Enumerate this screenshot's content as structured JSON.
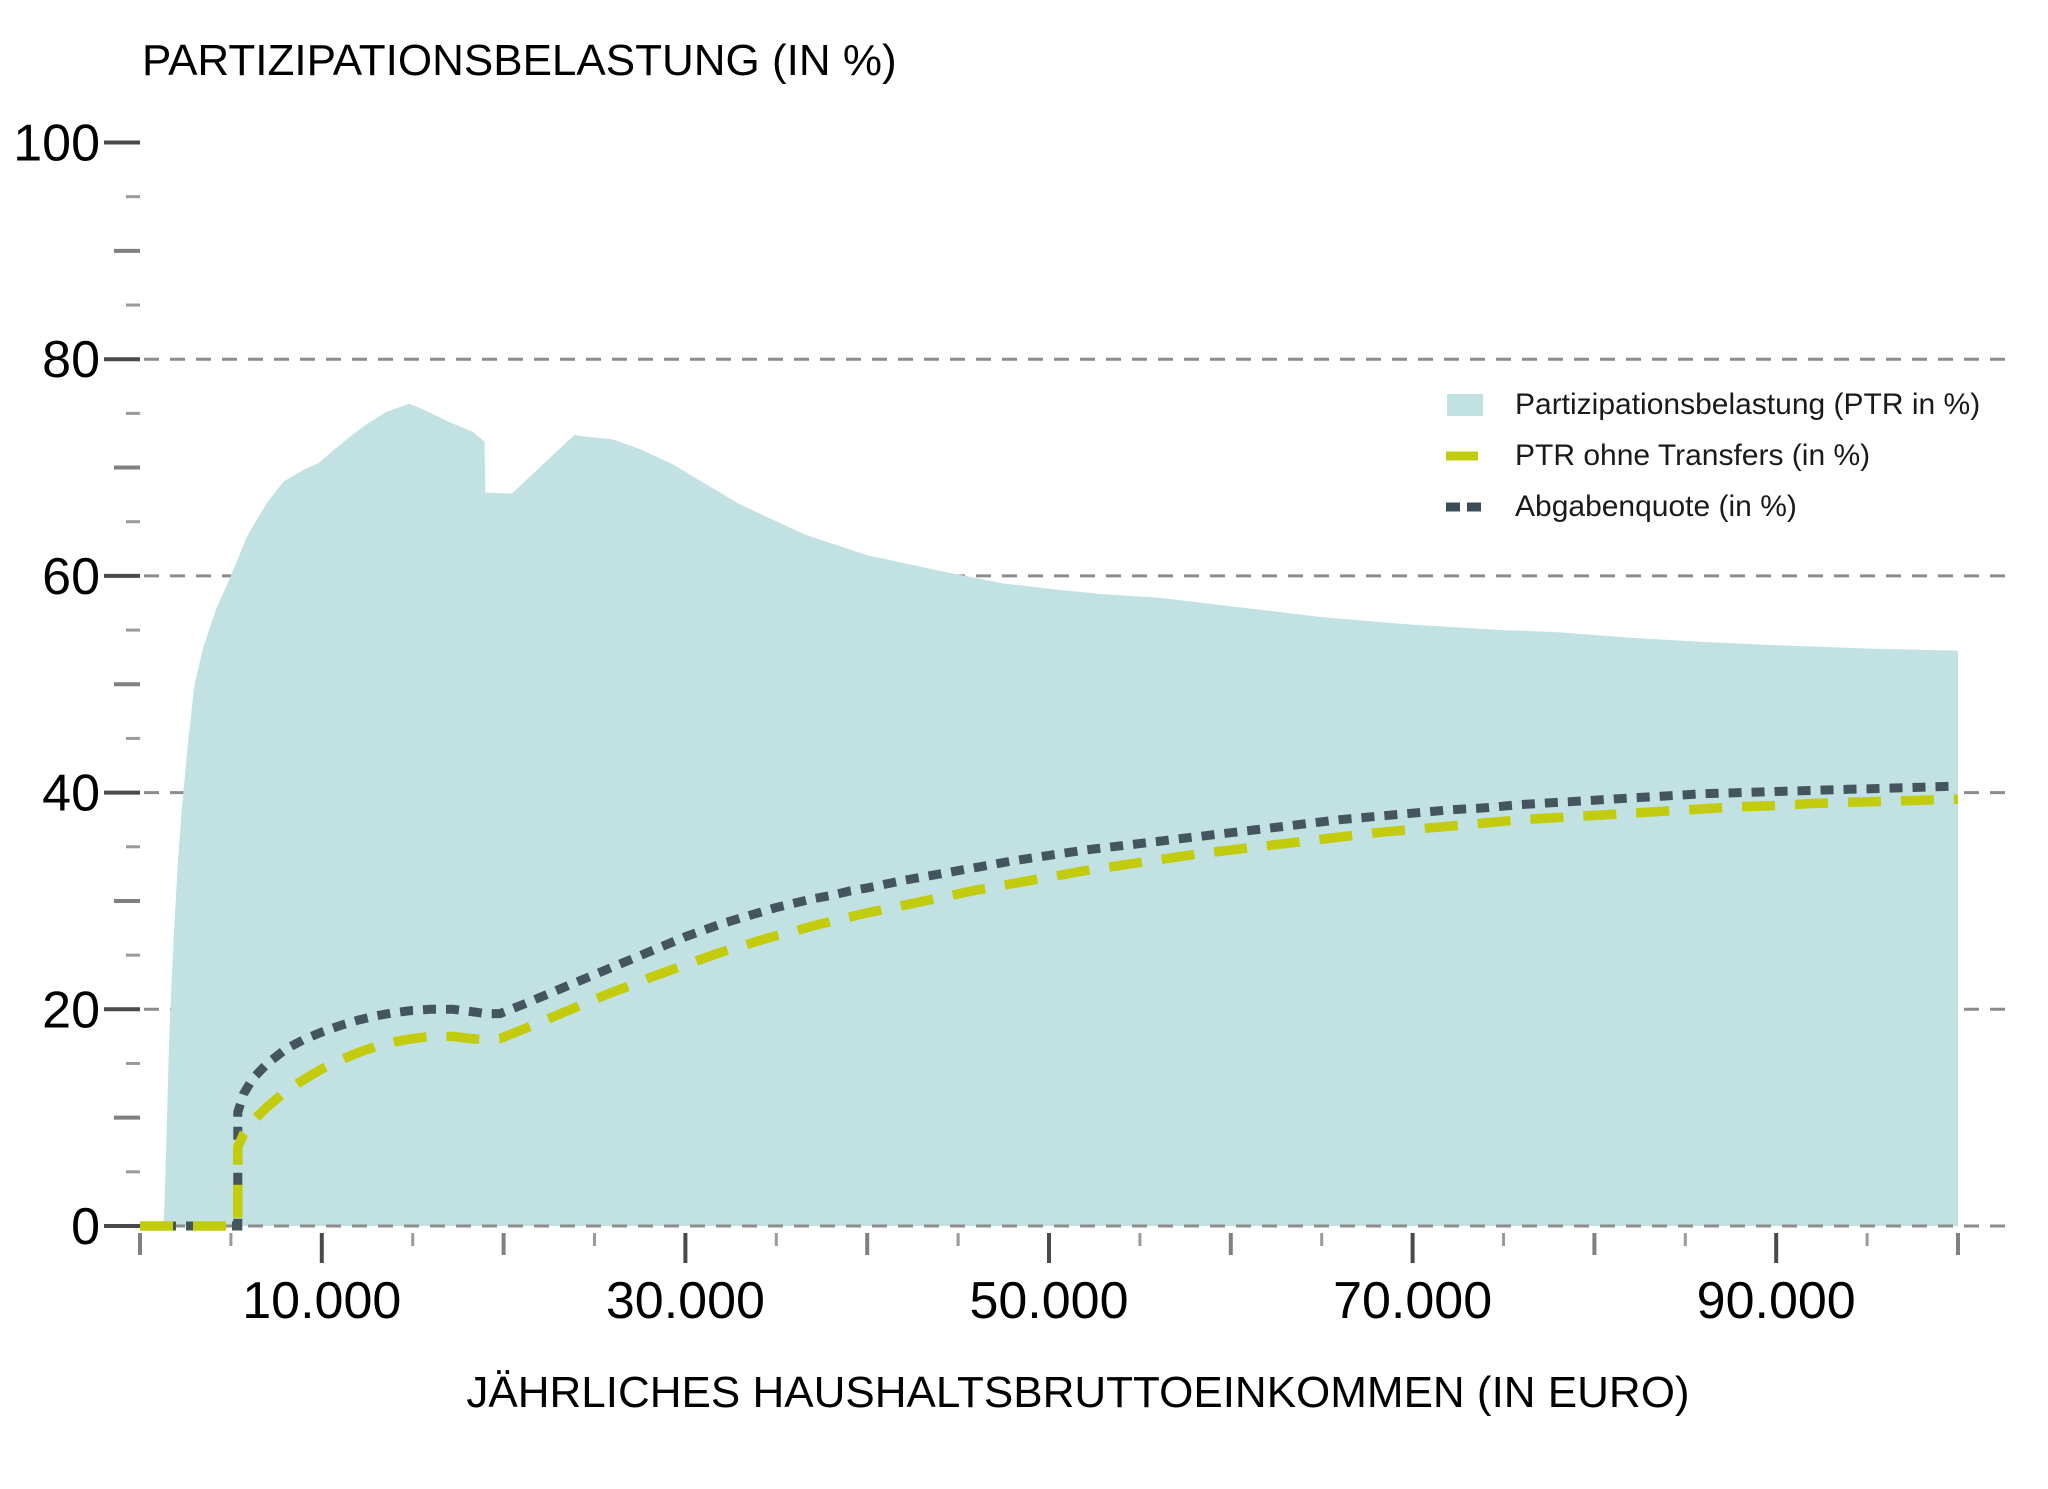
{
  "title": "PARTIZIPATIONSBELASTUNG (IN %)",
  "x_axis": {
    "title": "JÄHRLICHES HAUSHALTSBRUTTOEINKOMMEN (IN EURO)",
    "tick_labels": [
      {
        "value": 10000,
        "label": "10.000"
      },
      {
        "value": 30000,
        "label": "30.000"
      },
      {
        "value": 50000,
        "label": "50.000"
      },
      {
        "value": 70000,
        "label": "70.000"
      },
      {
        "value": 90000,
        "label": "90.000"
      }
    ],
    "minor_tick_step": 5000,
    "range": [
      0,
      100000
    ]
  },
  "y_axis": {
    "tick_labels": [
      {
        "value": 0,
        "label": "0"
      },
      {
        "value": 20,
        "label": "20"
      },
      {
        "value": 40,
        "label": "40"
      },
      {
        "value": 60,
        "label": "60"
      },
      {
        "value": 80,
        "label": "80"
      },
      {
        "value": 100,
        "label": "100"
      }
    ],
    "minor_tick_step": 5,
    "range": [
      0,
      100
    ]
  },
  "legend": {
    "items": [
      {
        "label": "Partizipationsbelastung (PTR in %)",
        "swatch": "area-swatch",
        "color": "#c1e1e2"
      },
      {
        "label": "PTR ohne Transfers (in %)",
        "swatch": "long-dash-swatch",
        "color": "#c2cc0c"
      },
      {
        "label": "Abgabenquote (in %)",
        "swatch": "short-dash-swatch",
        "color": "#3c4c56"
      }
    ]
  },
  "colors": {
    "area_fill": "#c1e1e2",
    "ptr_ohne_transfers_line": "#c2cc0c",
    "abgabenquote_line": "#45555e",
    "gridline": "#8c8c8c",
    "tick_major": "#4a4a4a",
    "tick_mid": "#808080",
    "tick_minor": "#9a9a9a",
    "text": "#000000"
  },
  "chart_data": {
    "type": "area",
    "title": "PARTIZIPATIONSBELASTUNG (IN %)",
    "xlabel": "JÄHRLICHES HAUSHALTSBRUTTOEINKOMMEN (IN EURO)",
    "ylabel": "",
    "xlim": [
      0,
      100000
    ],
    "ylim": [
      0,
      100
    ],
    "grid": "dashed horizontal at 0,20,40,60,80",
    "legend_position": "upper right inside",
    "gridline_values": [
      0,
      20,
      40,
      60,
      80
    ],
    "series": [
      {
        "name": "Partizipationsbelastung (PTR in %)",
        "style": "area",
        "color": "#c1e1e2",
        "points": [
          [
            0,
            0
          ],
          [
            1300,
            0
          ],
          [
            1400,
            5
          ],
          [
            1500,
            11
          ],
          [
            1600,
            17
          ],
          [
            1750,
            23
          ],
          [
            1900,
            28
          ],
          [
            2100,
            34
          ],
          [
            2300,
            38.5
          ],
          [
            2600,
            44
          ],
          [
            3000,
            50
          ],
          [
            3500,
            53.5
          ],
          [
            4200,
            57
          ],
          [
            5000,
            60
          ],
          [
            5900,
            63.7
          ],
          [
            7000,
            66.8
          ],
          [
            7900,
            68.7
          ],
          [
            9000,
            69.8
          ],
          [
            9800,
            70.4
          ],
          [
            11000,
            72.1
          ],
          [
            12200,
            73.7
          ],
          [
            13500,
            75.1
          ],
          [
            14800,
            75.9
          ],
          [
            15800,
            75.2
          ],
          [
            17000,
            74.2
          ],
          [
            18300,
            73.3
          ],
          [
            18950,
            72.4
          ],
          [
            19000,
            67.7
          ],
          [
            20450,
            67.6
          ],
          [
            21600,
            69.4
          ],
          [
            22800,
            71.3
          ],
          [
            23900,
            73.0
          ],
          [
            24300,
            72.9
          ],
          [
            26000,
            72.6
          ],
          [
            27500,
            71.7
          ],
          [
            29300,
            70.3
          ],
          [
            30800,
            68.8
          ],
          [
            33000,
            66.6
          ],
          [
            36600,
            63.8
          ],
          [
            40000,
            61.9
          ],
          [
            44200,
            60.4
          ],
          [
            47500,
            59.3
          ],
          [
            50600,
            58.7
          ],
          [
            53000,
            58.3
          ],
          [
            56000,
            58.0
          ],
          [
            60000,
            57.2
          ],
          [
            65000,
            56.2
          ],
          [
            70000,
            55.5
          ],
          [
            75000,
            55.0
          ],
          [
            78000,
            54.8
          ],
          [
            82000,
            54.3
          ],
          [
            86000,
            53.9
          ],
          [
            90000,
            53.6
          ],
          [
            95000,
            53.3
          ],
          [
            100000,
            53.1
          ]
        ]
      },
      {
        "name": "PTR ohne Transfers (in %)",
        "style": "long-dash line",
        "color": "#c2cc0c",
        "points": [
          [
            0,
            0
          ],
          [
            5380,
            0
          ],
          [
            5380,
            7.3
          ],
          [
            5700,
            8.5
          ],
          [
            6200,
            9.7
          ],
          [
            7000,
            11.0
          ],
          [
            8000,
            12.4
          ],
          [
            9000,
            13.5
          ],
          [
            10000,
            14.5
          ],
          [
            11000,
            15.3
          ],
          [
            12000,
            16.0
          ],
          [
            13000,
            16.6
          ],
          [
            14000,
            17.0
          ],
          [
            15000,
            17.3
          ],
          [
            16000,
            17.5
          ],
          [
            17200,
            17.5
          ],
          [
            18200,
            17.3
          ],
          [
            19000,
            17.2
          ],
          [
            19800,
            17.3
          ],
          [
            21000,
            18.1
          ],
          [
            22000,
            18.8
          ],
          [
            23000,
            19.5
          ],
          [
            24000,
            20.2
          ],
          [
            25000,
            20.9
          ],
          [
            26000,
            21.6
          ],
          [
            27000,
            22.2
          ],
          [
            28000,
            22.9
          ],
          [
            29000,
            23.5
          ],
          [
            30000,
            24.1
          ],
          [
            31000,
            24.7
          ],
          [
            32000,
            25.3
          ],
          [
            33000,
            25.8
          ],
          [
            34000,
            26.3
          ],
          [
            35000,
            26.8
          ],
          [
            36000,
            27.2
          ],
          [
            37000,
            27.7
          ],
          [
            38000,
            28.1
          ],
          [
            39000,
            28.5
          ],
          [
            40000,
            28.9
          ],
          [
            42000,
            29.6
          ],
          [
            44000,
            30.3
          ],
          [
            46000,
            31.0
          ],
          [
            48000,
            31.6
          ],
          [
            50000,
            32.2
          ],
          [
            52000,
            32.8
          ],
          [
            54000,
            33.3
          ],
          [
            56000,
            33.8
          ],
          [
            58000,
            34.3
          ],
          [
            60000,
            34.7
          ],
          [
            62000,
            35.1
          ],
          [
            64000,
            35.5
          ],
          [
            66000,
            35.9
          ],
          [
            68000,
            36.3
          ],
          [
            70000,
            36.6
          ],
          [
            72000,
            36.9
          ],
          [
            74000,
            37.2
          ],
          [
            76000,
            37.5
          ],
          [
            78000,
            37.7
          ],
          [
            80000,
            37.9
          ],
          [
            82000,
            38.1
          ],
          [
            84000,
            38.3
          ],
          [
            86000,
            38.5
          ],
          [
            88000,
            38.7
          ],
          [
            90000,
            38.8
          ],
          [
            92000,
            39.0
          ],
          [
            94000,
            39.1
          ],
          [
            96000,
            39.2
          ],
          [
            98000,
            39.3
          ],
          [
            100000,
            39.4
          ]
        ]
      },
      {
        "name": "Abgabenquote (in %)",
        "style": "short-dash line",
        "color": "#45555e",
        "points": [
          [
            0,
            0
          ],
          [
            5380,
            0
          ],
          [
            5380,
            10.5
          ],
          [
            5700,
            12.2
          ],
          [
            6200,
            13.6
          ],
          [
            7000,
            15.0
          ],
          [
            8000,
            16.3
          ],
          [
            9000,
            17.2
          ],
          [
            10000,
            17.9
          ],
          [
            11000,
            18.5
          ],
          [
            12000,
            19.0
          ],
          [
            13000,
            19.4
          ],
          [
            14000,
            19.7
          ],
          [
            15000,
            19.9
          ],
          [
            16000,
            20.0
          ],
          [
            17200,
            20.0
          ],
          [
            18200,
            19.8
          ],
          [
            19000,
            19.6
          ],
          [
            19800,
            19.6
          ],
          [
            21000,
            20.4
          ],
          [
            22000,
            21.1
          ],
          [
            23000,
            21.8
          ],
          [
            24000,
            22.5
          ],
          [
            25000,
            23.2
          ],
          [
            26000,
            23.9
          ],
          [
            27000,
            24.6
          ],
          [
            28000,
            25.3
          ],
          [
            29000,
            26.0
          ],
          [
            30000,
            26.7
          ],
          [
            31000,
            27.3
          ],
          [
            32000,
            27.9
          ],
          [
            33000,
            28.4
          ],
          [
            34000,
            28.9
          ],
          [
            35000,
            29.4
          ],
          [
            36000,
            29.8
          ],
          [
            37000,
            30.2
          ],
          [
            38000,
            30.5
          ],
          [
            39000,
            30.9
          ],
          [
            40000,
            31.2
          ],
          [
            42000,
            31.9
          ],
          [
            44000,
            32.5
          ],
          [
            46000,
            33.1
          ],
          [
            48000,
            33.7
          ],
          [
            50000,
            34.2
          ],
          [
            52000,
            34.7
          ],
          [
            54000,
            35.1
          ],
          [
            56000,
            35.5
          ],
          [
            58000,
            35.9
          ],
          [
            60000,
            36.3
          ],
          [
            62000,
            36.7
          ],
          [
            64000,
            37.1
          ],
          [
            66000,
            37.5
          ],
          [
            68000,
            37.8
          ],
          [
            70000,
            38.1
          ],
          [
            72000,
            38.4
          ],
          [
            74000,
            38.6
          ],
          [
            76000,
            38.9
          ],
          [
            78000,
            39.1
          ],
          [
            80000,
            39.3
          ],
          [
            82000,
            39.5
          ],
          [
            84000,
            39.7
          ],
          [
            86000,
            39.9
          ],
          [
            88000,
            40.0
          ],
          [
            90000,
            40.1
          ],
          [
            92000,
            40.2
          ],
          [
            94000,
            40.3
          ],
          [
            96000,
            40.4
          ],
          [
            98000,
            40.5
          ],
          [
            100000,
            40.6
          ]
        ]
      }
    ]
  }
}
